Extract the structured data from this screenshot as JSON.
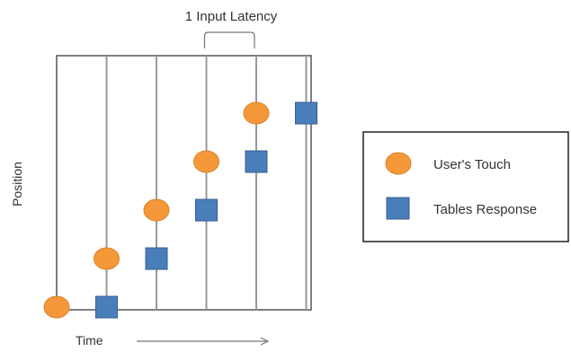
{
  "diagram": {
    "annotation": "1 Input Latency",
    "y_axis_label": "Position",
    "x_axis_label": "Time",
    "legend": {
      "items": [
        {
          "shape": "circle",
          "label": "User's Touch"
        },
        {
          "shape": "square",
          "label": "Tables Response"
        }
      ]
    },
    "time_steps": 6,
    "touch_points": [
      {
        "t": 0,
        "pos": 0
      },
      {
        "t": 1,
        "pos": 1
      },
      {
        "t": 2,
        "pos": 2
      },
      {
        "t": 3,
        "pos": 3
      },
      {
        "t": 4,
        "pos": 4
      }
    ],
    "response_points": [
      {
        "t": 1,
        "pos": 0
      },
      {
        "t": 2,
        "pos": 1
      },
      {
        "t": 3,
        "pos": 2
      },
      {
        "t": 4,
        "pos": 3
      },
      {
        "t": 5,
        "pos": 4
      }
    ],
    "latency_steps": 1,
    "colors": {
      "touch_fill": "#F5983A",
      "touch_stroke": "#D98229",
      "response_fill": "#4A7EBB",
      "response_stroke": "#355E92",
      "lines": "#9A9A9A",
      "frame": "#555555",
      "text": "#333333"
    }
  }
}
